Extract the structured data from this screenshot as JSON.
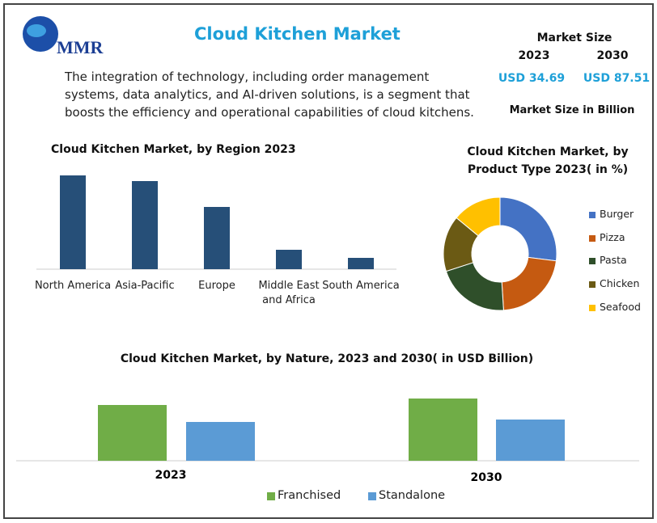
{
  "header": {
    "logo": "MMR",
    "title": "Cloud Kitchen Market",
    "description": "The integration of technology, including order management systems, data analytics, and AI-driven solutions, is a segment that boosts the efficiency and operational capabilities of cloud kitchens.",
    "market_size": {
      "title": "Market Size",
      "years": [
        "2023",
        "2030"
      ],
      "values": [
        "USD 34.69",
        "USD 87.51"
      ],
      "note": "Market Size in Billion"
    }
  },
  "chart_data": [
    {
      "type": "bar",
      "title": "Cloud Kitchen Market, by Region 2023",
      "categories": [
        "North America",
        "Asia-Pacific",
        "Europe",
        "Middle East and Africa",
        "South America"
      ],
      "values": [
        116,
        109,
        77,
        24,
        14
      ],
      "color": "#264f78"
    },
    {
      "type": "pie",
      "title": "Cloud Kitchen Market, by Product Type 2023( in %)",
      "categories": [
        "Burger",
        "Pizza",
        "Pasta",
        "Chicken",
        "Seafood"
      ],
      "values": [
        27,
        22,
        21,
        16,
        14
      ],
      "colors": [
        "#4472c4",
        "#c55a11",
        "#2f4f2a",
        "#6b5a14",
        "#ffc000"
      ]
    },
    {
      "type": "grouped-bar",
      "title": "Cloud Kitchen Market, by Nature, 2023 and 2030( in USD Billion)",
      "categories": [
        "2023",
        "2030"
      ],
      "series": [
        {
          "name": "Franchised",
          "color": "#70ad47",
          "values": [
            69,
            77
          ]
        },
        {
          "name": "Standalone",
          "color": "#5b9bd5",
          "values": [
            48,
            51
          ]
        }
      ]
    }
  ]
}
